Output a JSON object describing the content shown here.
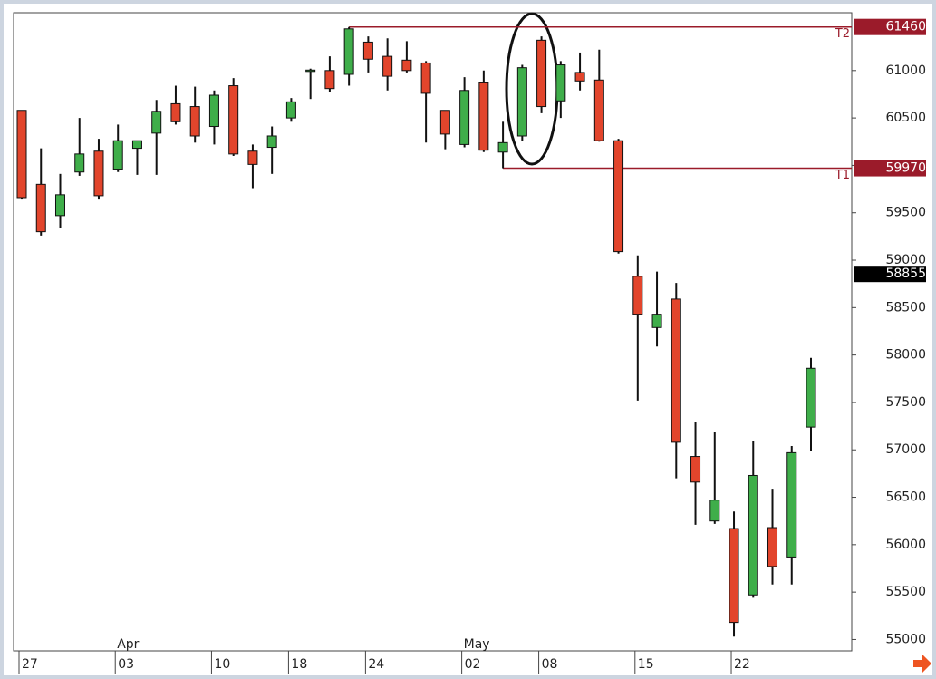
{
  "chart_data": {
    "type": "candlestick",
    "categories": [
      "27",
      null,
      null,
      null,
      null,
      "03",
      null,
      null,
      null,
      null,
      "10",
      null,
      null,
      null,
      "18",
      null,
      null,
      null,
      "24",
      null,
      null,
      null,
      null,
      "02",
      null,
      null,
      null,
      "08",
      null,
      null,
      null,
      null,
      "15",
      null,
      null,
      null,
      null,
      "22",
      null,
      null,
      null,
      null
    ],
    "open": [
      60580,
      59800,
      59470,
      59930,
      60150,
      59960,
      60180,
      60340,
      60650,
      60620,
      60410,
      60840,
      60150,
      60190,
      60500,
      60995,
      61000,
      60960,
      61300,
      61150,
      61110,
      61080,
      60580,
      60220,
      60870,
      60140,
      60310,
      61320,
      60680,
      60980,
      60900,
      60260,
      58830,
      58290,
      58590,
      56930,
      56250,
      56170,
      55470,
      56180,
      55870,
      57240
    ],
    "high": [
      60580,
      60180,
      59910,
      60500,
      60280,
      60430,
      60260,
      60690,
      60840,
      60830,
      60790,
      60920,
      60220,
      60410,
      60710,
      61020,
      61150,
      61460,
      61360,
      61340,
      61310,
      61100,
      60580,
      60930,
      61000,
      60460,
      61060,
      61360,
      61100,
      61190,
      61220,
      60280,
      59050,
      58880,
      58760,
      57290,
      57190,
      56350,
      57090,
      56590,
      57040,
      57970
    ],
    "low": [
      59640,
      59260,
      59340,
      59890,
      59640,
      59930,
      59900,
      59900,
      60430,
      60240,
      60220,
      60100,
      59760,
      59910,
      60460,
      60700,
      60770,
      60840,
      60980,
      60790,
      60980,
      60240,
      60170,
      60190,
      60140,
      59970,
      60260,
      60550,
      60500,
      60790,
      60250,
      59070,
      57520,
      58090,
      56700,
      56210,
      56220,
      55030,
      55440,
      55580,
      55580,
      56990
    ],
    "close": [
      59660,
      59300,
      59690,
      60120,
      59680,
      60260,
      60260,
      60570,
      60460,
      60310,
      60740,
      60120,
      60010,
      60310,
      60670,
      61005,
      60810,
      61440,
      61120,
      60940,
      61000,
      60760,
      60330,
      60790,
      60160,
      60240,
      61030,
      60620,
      61060,
      60890,
      60260,
      59090,
      58430,
      58430,
      57080,
      56660,
      56470,
      55180,
      56730,
      55770,
      56970,
      57860
    ],
    "up_color": "#3fae4a",
    "down_color": "#e2452c",
    "month_labels": [
      {
        "text": "Apr",
        "at": "03"
      },
      {
        "text": "May",
        "at": "02"
      }
    ],
    "levels": [
      {
        "label": "T2",
        "value": 61460
      },
      {
        "label": "T1",
        "value": 59970
      }
    ],
    "level_color": "#9b1b2a",
    "last_price": 58855,
    "ylim": [
      54880,
      61610
    ],
    "yticks": [
      55000,
      55500,
      56000,
      56500,
      57000,
      57500,
      58000,
      58500,
      59000,
      59500,
      60000,
      60500,
      61000
    ]
  }
}
